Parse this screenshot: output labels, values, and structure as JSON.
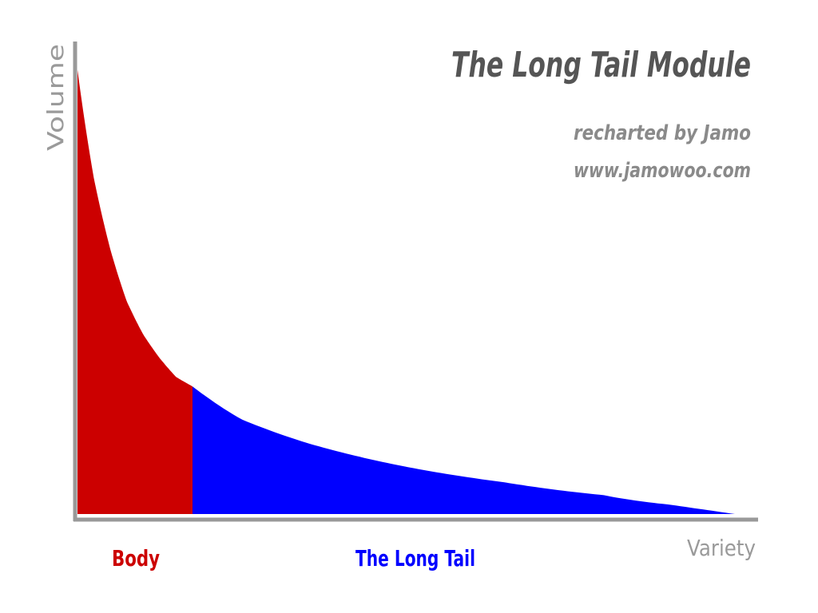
{
  "chart_data": {
    "type": "area",
    "title": "The Long Tail Module",
    "subtitle_lines": [
      "recharted by Jamo",
      "www.jamowoo.com"
    ],
    "xlabel": "Variety",
    "ylabel": "Volume",
    "grid": false,
    "legend": "none",
    "series": [
      {
        "label": "Body",
        "color": "#cc0000",
        "x_range": [
          0,
          0.175
        ]
      },
      {
        "label": "The Long Tail",
        "color": "#0000ff",
        "x_range": [
          0.175,
          1.0
        ]
      }
    ],
    "curve_points": {
      "x": [
        0,
        0.025,
        0.05,
        0.075,
        0.1,
        0.125,
        0.15,
        0.175,
        0.25,
        0.35,
        0.5,
        0.65,
        0.8,
        0.9,
        1.0
      ],
      "y": [
        0.94,
        0.71,
        0.56,
        0.45,
        0.38,
        0.33,
        0.29,
        0.27,
        0.2,
        0.15,
        0.1,
        0.067,
        0.04,
        0.02,
        0.0
      ]
    }
  }
}
